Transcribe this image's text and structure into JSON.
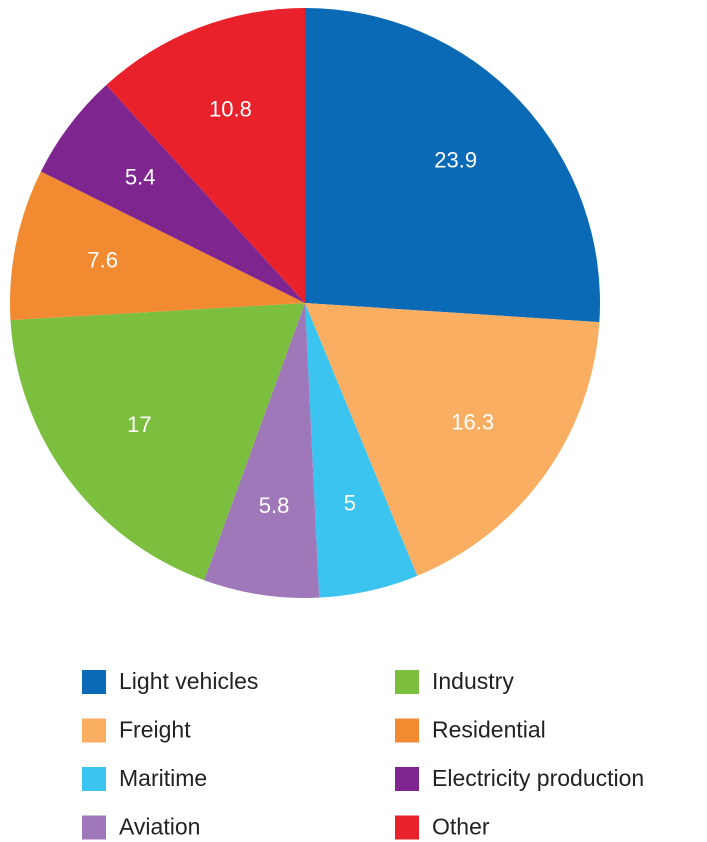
{
  "chart_data": {
    "type": "pie",
    "categories": [
      "Light vehicles",
      "Freight",
      "Maritime",
      "Aviation",
      "Industry",
      "Residential",
      "Electricity production",
      "Other"
    ],
    "values": [
      23.9,
      16.3,
      5,
      5.8,
      17,
      7.6,
      5.4,
      10.8
    ],
    "colors": [
      "#0a6ab6",
      "#f9ae62",
      "#3cc4f0",
      "#9e78b9",
      "#7cbf3f",
      "#f28a31",
      "#7e2590",
      "#e8212b"
    ],
    "legend": "bottom"
  }
}
